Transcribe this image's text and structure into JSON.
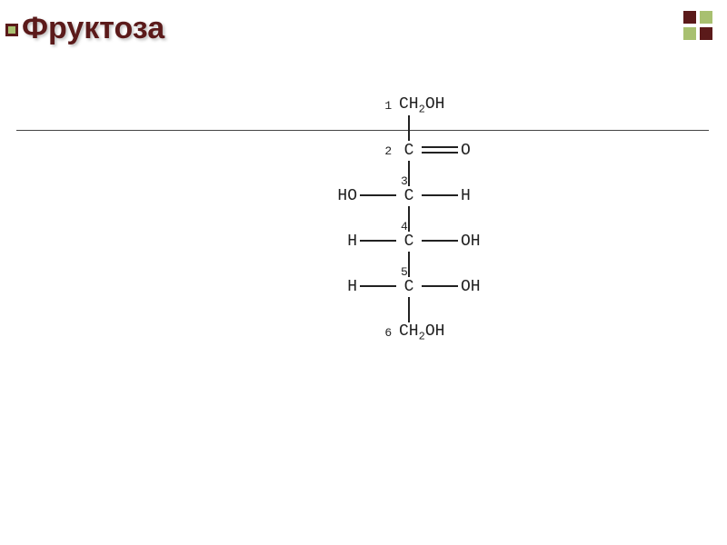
{
  "title": {
    "text": "Фруктоза",
    "color": "#5b1a1a",
    "fontsize": 34,
    "fontweight": "bold"
  },
  "bullet": {
    "type": "square",
    "colors": {
      "outer": "#5b1a1a",
      "inner": "#a8c070"
    }
  },
  "corner_icon": {
    "type": "four-squares",
    "colors": {
      "dark": "#5b1a1a",
      "light": "#a8c070"
    }
  },
  "divider": {
    "color": "#444444"
  },
  "molecule": {
    "type": "fischer-projection",
    "name": "D-Fructose",
    "font": "monospace",
    "text_color": "#222222",
    "bond_color": "#222222",
    "carbons": [
      {
        "n": "1",
        "left": "",
        "center": "CH2OH",
        "right": "",
        "bond_right": "none",
        "show_num_left_of_center": true
      },
      {
        "n": "2",
        "left": "",
        "center": "C",
        "right": "O",
        "bond_right": "double",
        "show_num_left_of_center": true
      },
      {
        "n": "3",
        "left": "HO",
        "center": "C",
        "right": "H",
        "bond_right": "single"
      },
      {
        "n": "4",
        "left": "H",
        "center": "C",
        "right": "OH",
        "bond_right": "single"
      },
      {
        "n": "5",
        "left": "H",
        "center": "C",
        "right": "OH",
        "bond_right": "single"
      },
      {
        "n": "6",
        "left": "",
        "center": "CH2OH",
        "right": "",
        "bond_right": "none",
        "show_num_left_of_center": true
      }
    ]
  }
}
